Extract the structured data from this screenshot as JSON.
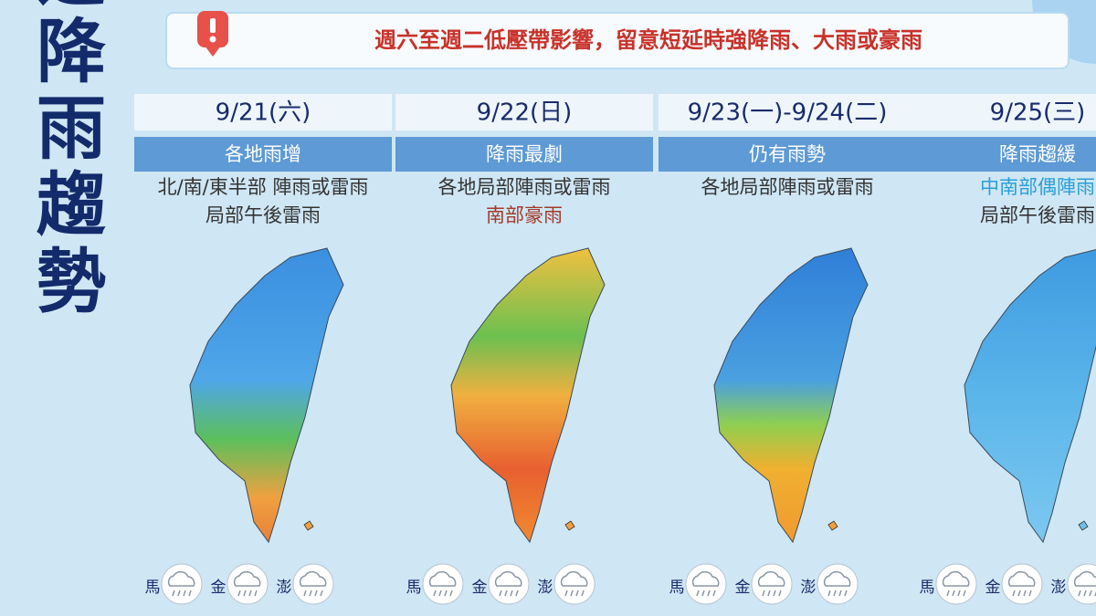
{
  "banner": "週六至週二低壓帶影響，留意短延時強降雨、大雨或豪雨",
  "title": "一週降雨趨勢",
  "islands": [
    "馬",
    "金",
    "澎"
  ],
  "days": [
    {
      "date": "9/21(六)",
      "headline": "各地雨增",
      "lines": [
        {
          "text": "北/南/東半部 陣雨或雷雨",
          "color": "#333333"
        },
        {
          "text": "局部午後雷雨",
          "color": "#333333"
        }
      ]
    },
    {
      "date": "9/22(日)",
      "headline": "降雨最劇",
      "lines": [
        {
          "text": "各地局部陣雨或雷雨",
          "color": "#333333"
        },
        {
          "text": "南部豪雨",
          "color": "#a33a2a"
        }
      ]
    },
    {
      "date": "9/23(一)-9/24(二)",
      "headline": "仍有雨勢",
      "lines": [
        {
          "text": "各地局部陣雨或雷雨",
          "color": "#333333"
        }
      ]
    },
    {
      "date": "9/25(三)",
      "headline": "降雨趨緩",
      "lines": [
        {
          "text": "中南部偶陣雨",
          "color": "#2a9fd8"
        },
        {
          "text": "局部午後雷雨",
          "color": "#333333"
        }
      ]
    }
  ]
}
